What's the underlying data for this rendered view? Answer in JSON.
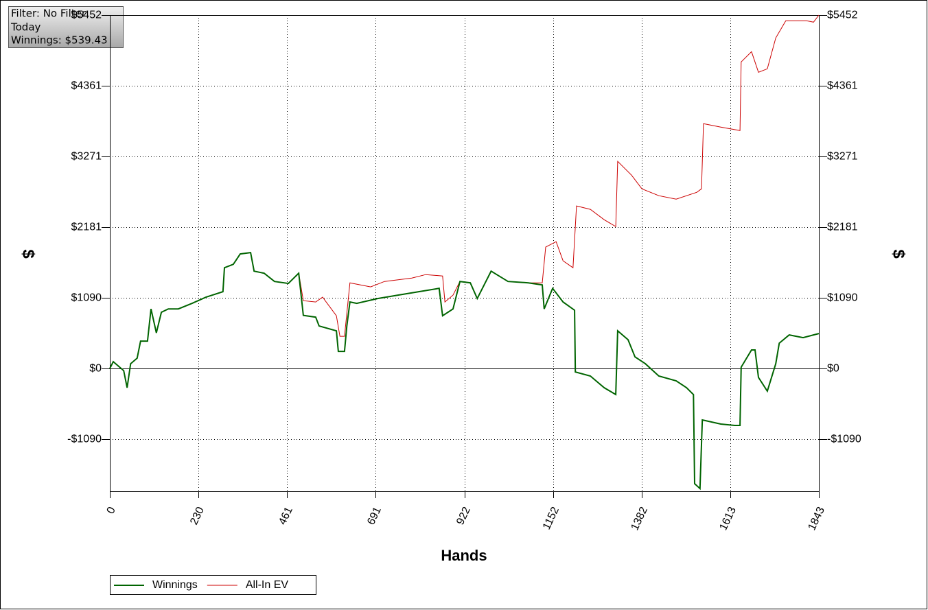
{
  "info": {
    "filter": "Filter: No Filter",
    "period": "Today",
    "winnings": "Winnings: $539.43"
  },
  "chart_data": {
    "type": "line",
    "xlabel": "Hands",
    "ylabel": "$",
    "y2label": "$",
    "xlim": [
      0,
      1843
    ],
    "xticks": [
      0,
      230,
      461,
      691,
      922,
      1152,
      1382,
      1613,
      1843
    ],
    "ylim": [
      -1894,
      5452
    ],
    "yticks": [
      {
        "value": -1090,
        "label": "-$1090"
      },
      {
        "value": 0,
        "label": "$0"
      },
      {
        "value": 1090,
        "label": "$1090"
      },
      {
        "value": 2181,
        "label": "$2181"
      },
      {
        "value": 3271,
        "label": "$3271"
      },
      {
        "value": 4361,
        "label": "$4361"
      },
      {
        "value": 5452,
        "label": "$5452"
      }
    ],
    "grid": true,
    "legend": "bottom-left",
    "series": [
      {
        "name": "Winnings",
        "color": "#006400",
        "x": [
          0,
          9,
          36,
          45,
          54,
          71,
          80,
          98,
          107,
          121,
          134,
          152,
          178,
          214,
          250,
          294,
          298,
          321,
          339,
          366,
          375,
          401,
          428,
          464,
          491,
          503,
          535,
          544,
          589,
          594,
          610,
          616,
          624,
          642,
          696,
          749,
          803,
          856,
          865,
          892,
          910,
          937,
          955,
          991,
          1035,
          1088,
          1124,
          1129,
          1151,
          1178,
          1208,
          1210,
          1249,
          1285,
          1315,
          1320,
          1347,
          1365,
          1392,
          1427,
          1472,
          1499,
          1517,
          1520,
          1534,
          1540,
          1588,
          1624,
          1638,
          1641,
          1668,
          1677,
          1686,
          1709,
          1731,
          1740,
          1766,
          1802,
          1829,
          1843
        ],
        "values": [
          0,
          106,
          -32,
          -296,
          74,
          159,
          423,
          423,
          920,
          550,
          868,
          920,
          920,
          1005,
          1100,
          1185,
          1555,
          1608,
          1767,
          1788,
          1502,
          1470,
          1343,
          1312,
          1470,
          820,
          793,
          656,
          582,
          264,
          264,
          656,
          1026,
          1005,
          1079,
          1132,
          1185,
          1237,
          814,
          920,
          1343,
          1322,
          1079,
          1502,
          1343,
          1322,
          1290,
          920,
          1237,
          1026,
          899,
          -53,
          -116,
          -296,
          -402,
          582,
          444,
          180,
          74,
          -116,
          -190,
          -296,
          -402,
          -1777,
          -1852,
          -793,
          -857,
          -878,
          -878,
          21,
          286,
          286,
          -137,
          -349,
          74,
          391,
          518,
          476,
          518,
          539
        ]
      },
      {
        "name": "All-In EV",
        "color": "#cc0000",
        "x": [
          0,
          9,
          36,
          45,
          54,
          71,
          80,
          98,
          107,
          121,
          134,
          152,
          178,
          214,
          250,
          294,
          298,
          321,
          339,
          366,
          375,
          401,
          428,
          464,
          491,
          503,
          535,
          553,
          589,
          598,
          610,
          624,
          678,
          714,
          785,
          821,
          865,
          871,
          892,
          910,
          937,
          955,
          991,
          1035,
          1088,
          1124,
          1133,
          1160,
          1178,
          1204,
          1213,
          1249,
          1285,
          1315,
          1320,
          1356,
          1383,
          1427,
          1472,
          1526,
          1538,
          1543,
          1588,
          1638,
          1641,
          1668,
          1686,
          1709,
          1731,
          1757,
          1811,
          1829,
          1843
        ],
        "values": [
          0,
          106,
          -32,
          -296,
          74,
          159,
          423,
          423,
          920,
          550,
          868,
          920,
          920,
          1005,
          1100,
          1185,
          1555,
          1608,
          1767,
          1788,
          1502,
          1470,
          1343,
          1312,
          1470,
          1047,
          1026,
          1100,
          814,
          497,
          497,
          1322,
          1259,
          1343,
          1396,
          1449,
          1428,
          1026,
          1132,
          1343,
          1322,
          1079,
          1502,
          1343,
          1322,
          1322,
          1873,
          1957,
          1661,
          1555,
          2508,
          2455,
          2296,
          2190,
          3195,
          2984,
          2772,
          2666,
          2613,
          2719,
          2772,
          3777,
          3724,
          3671,
          4729,
          4888,
          4570,
          4623,
          5099,
          5364,
          5364,
          5343,
          5452
        ]
      }
    ]
  }
}
